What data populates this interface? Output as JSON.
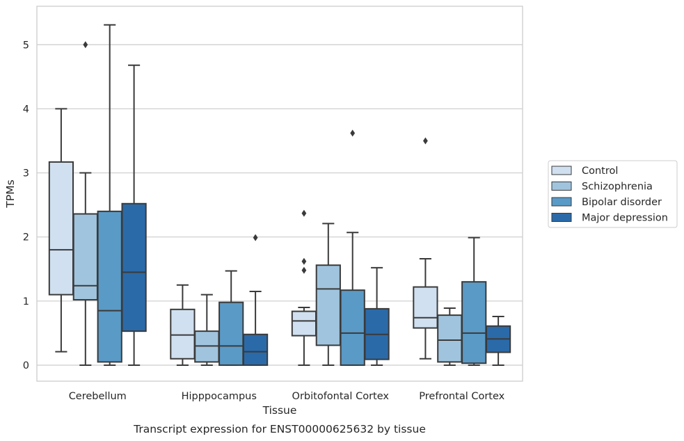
{
  "caption": "Transcript expression for ENST00000625632 by tissue",
  "chart_data": {
    "type": "box",
    "title": "",
    "xlabel": "Tissue",
    "ylabel": "TPMs",
    "ylim": [
      -0.25,
      5.6
    ],
    "yticks": [
      0,
      1,
      2,
      3,
      4,
      5
    ],
    "grid": "horizontal",
    "legend_position": "right",
    "categories": [
      "Cerebellum",
      "Hipppocampus",
      "Orbitofontal Cortex",
      "Prefrontal Cortex"
    ],
    "series": [
      {
        "name": "Control",
        "color": "#d0e0f0",
        "boxes": [
          {
            "whisker_low": 0.21,
            "q1": 1.1,
            "median": 1.8,
            "q3": 3.17,
            "whisker_high": 4.0,
            "outliers": []
          },
          {
            "whisker_low": 0.0,
            "q1": 0.1,
            "median": 0.47,
            "q3": 0.87,
            "whisker_high": 1.25,
            "outliers": []
          },
          {
            "whisker_low": 0.0,
            "q1": 0.46,
            "median": 0.69,
            "q3": 0.84,
            "whisker_high": 0.9,
            "outliers": [
              1.48,
              1.62,
              2.37
            ]
          },
          {
            "whisker_low": 0.1,
            "q1": 0.58,
            "median": 0.74,
            "q3": 1.22,
            "whisker_high": 1.66,
            "outliers": [
              3.5
            ]
          }
        ]
      },
      {
        "name": "Schizophrenia",
        "color": "#a0c4dd",
        "boxes": [
          {
            "whisker_low": 0.0,
            "q1": 1.02,
            "median": 1.24,
            "q3": 2.36,
            "whisker_high": 3.0,
            "outliers": [
              5.0
            ]
          },
          {
            "whisker_low": 0.0,
            "q1": 0.05,
            "median": 0.3,
            "q3": 0.53,
            "whisker_high": 1.1,
            "outliers": []
          },
          {
            "whisker_low": 0.0,
            "q1": 0.31,
            "median": 1.19,
            "q3": 1.56,
            "whisker_high": 2.21,
            "outliers": []
          },
          {
            "whisker_low": 0.0,
            "q1": 0.05,
            "median": 0.39,
            "q3": 0.78,
            "whisker_high": 0.89,
            "outliers": []
          }
        ]
      },
      {
        "name": "Bipolar disorder",
        "color": "#5a9ac6",
        "boxes": [
          {
            "whisker_low": 0.0,
            "q1": 0.05,
            "median": 0.85,
            "q3": 2.4,
            "whisker_high": 5.31,
            "outliers": []
          },
          {
            "whisker_low": 0.0,
            "q1": 0.0,
            "median": 0.3,
            "q3": 0.98,
            "whisker_high": 1.47,
            "outliers": []
          },
          {
            "whisker_low": 0.0,
            "q1": 0.0,
            "median": 0.5,
            "q3": 1.17,
            "whisker_high": 2.07,
            "outliers": [
              3.62
            ]
          },
          {
            "whisker_low": 0.0,
            "q1": 0.03,
            "median": 0.5,
            "q3": 1.3,
            "whisker_high": 1.99,
            "outliers": []
          }
        ]
      },
      {
        "name": "Major depression",
        "color": "#2b6aa8",
        "boxes": [
          {
            "whisker_low": 0.0,
            "q1": 0.53,
            "median": 1.45,
            "q3": 2.52,
            "whisker_high": 4.68,
            "outliers": []
          },
          {
            "whisker_low": 0.0,
            "q1": 0.0,
            "median": 0.21,
            "q3": 0.48,
            "whisker_high": 1.15,
            "outliers": [
              1.99
            ]
          },
          {
            "whisker_low": 0.0,
            "q1": 0.09,
            "median": 0.48,
            "q3": 0.88,
            "whisker_high": 1.52,
            "outliers": []
          },
          {
            "whisker_low": 0.0,
            "q1": 0.2,
            "median": 0.41,
            "q3": 0.61,
            "whisker_high": 0.76,
            "outliers": []
          }
        ]
      }
    ]
  }
}
